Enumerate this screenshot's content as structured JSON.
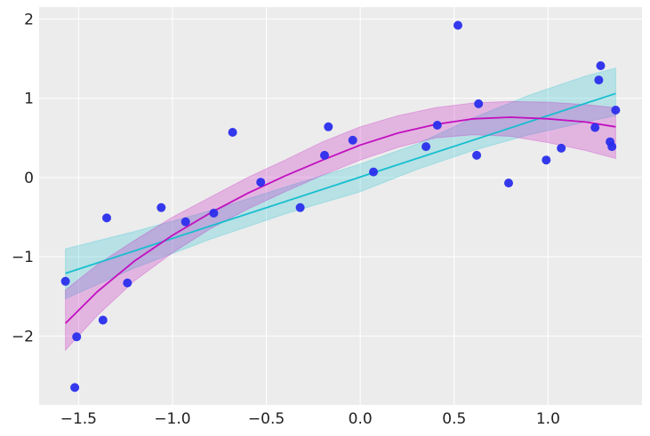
{
  "chart_data": {
    "type": "scatter",
    "title": "",
    "xlabel": "",
    "ylabel": "",
    "xlim": [
      -1.71,
      1.5
    ],
    "ylim": [
      -2.87,
      2.15
    ],
    "grid": true,
    "background": "#ececec",
    "xticks": [
      -1.5,
      -1.0,
      -0.5,
      0.0,
      0.5,
      1.0
    ],
    "xtick_labels": [
      "−1.5",
      "−1.0",
      "−0.5",
      "0.0",
      "0.5",
      "1.0"
    ],
    "yticks": [
      -2,
      -1,
      0,
      1,
      2
    ],
    "ytick_labels": [
      "−2",
      "−1",
      "0",
      "1",
      "2"
    ],
    "points": {
      "color": "#2a2eec",
      "x": [
        -1.57,
        -1.51,
        -1.52,
        -1.37,
        -1.35,
        -1.24,
        -1.06,
        -0.93,
        -0.78,
        -0.68,
        -0.53,
        -0.32,
        -0.19,
        -0.17,
        -0.04,
        0.07,
        0.35,
        0.41,
        0.52,
        0.62,
        0.63,
        0.79,
        0.99,
        1.07,
        1.25,
        1.27,
        1.28,
        1.33,
        1.34,
        1.36
      ],
      "y": [
        -1.31,
        -2.01,
        -2.65,
        -1.8,
        -0.51,
        -1.33,
        -0.38,
        -0.56,
        -0.45,
        0.57,
        -0.06,
        -0.38,
        0.28,
        0.64,
        0.47,
        0.07,
        0.39,
        0.66,
        1.92,
        0.28,
        0.93,
        -0.07,
        0.22,
        0.37,
        0.63,
        1.23,
        1.41,
        0.45,
        0.39,
        0.85
      ]
    },
    "series": [
      {
        "color": "#17becf",
        "fill_color": "#17becf",
        "x": [
          -1.57,
          1.36
        ],
        "y": [
          -1.21,
          1.06
        ],
        "band_x": [
          -1.57,
          -1.2,
          -0.8,
          -0.4,
          0.0,
          0.3,
          0.6,
          0.9,
          1.2,
          1.36
        ],
        "band_lower": [
          -1.53,
          -1.14,
          -0.78,
          -0.46,
          -0.18,
          0.1,
          0.34,
          0.54,
          0.7,
          0.78
        ],
        "band_upper": [
          -0.9,
          -0.68,
          -0.42,
          -0.12,
          0.17,
          0.42,
          0.75,
          1.04,
          1.28,
          1.38
        ]
      },
      {
        "color": "#c20fbf",
        "fill_color": "#c20fbf",
        "x": [
          -1.57,
          -1.4,
          -1.2,
          -1.0,
          -0.8,
          -0.6,
          -0.4,
          -0.2,
          0.0,
          0.2,
          0.4,
          0.6,
          0.8,
          1.0,
          1.2,
          1.36
        ],
        "y": [
          -1.84,
          -1.44,
          -1.05,
          -0.73,
          -0.45,
          -0.2,
          0.02,
          0.22,
          0.41,
          0.56,
          0.67,
          0.74,
          0.76,
          0.74,
          0.7,
          0.64
        ],
        "band_lower": [
          -2.18,
          -1.74,
          -1.3,
          -0.95,
          -0.65,
          -0.4,
          -0.18,
          0.03,
          0.22,
          0.38,
          0.5,
          0.54,
          0.52,
          0.44,
          0.34,
          0.24
        ],
        "band_upper": [
          -1.42,
          -1.1,
          -0.79,
          -0.5,
          -0.25,
          0.0,
          0.22,
          0.45,
          0.64,
          0.78,
          0.88,
          0.94,
          0.96,
          0.95,
          0.92,
          0.88
        ]
      }
    ]
  }
}
